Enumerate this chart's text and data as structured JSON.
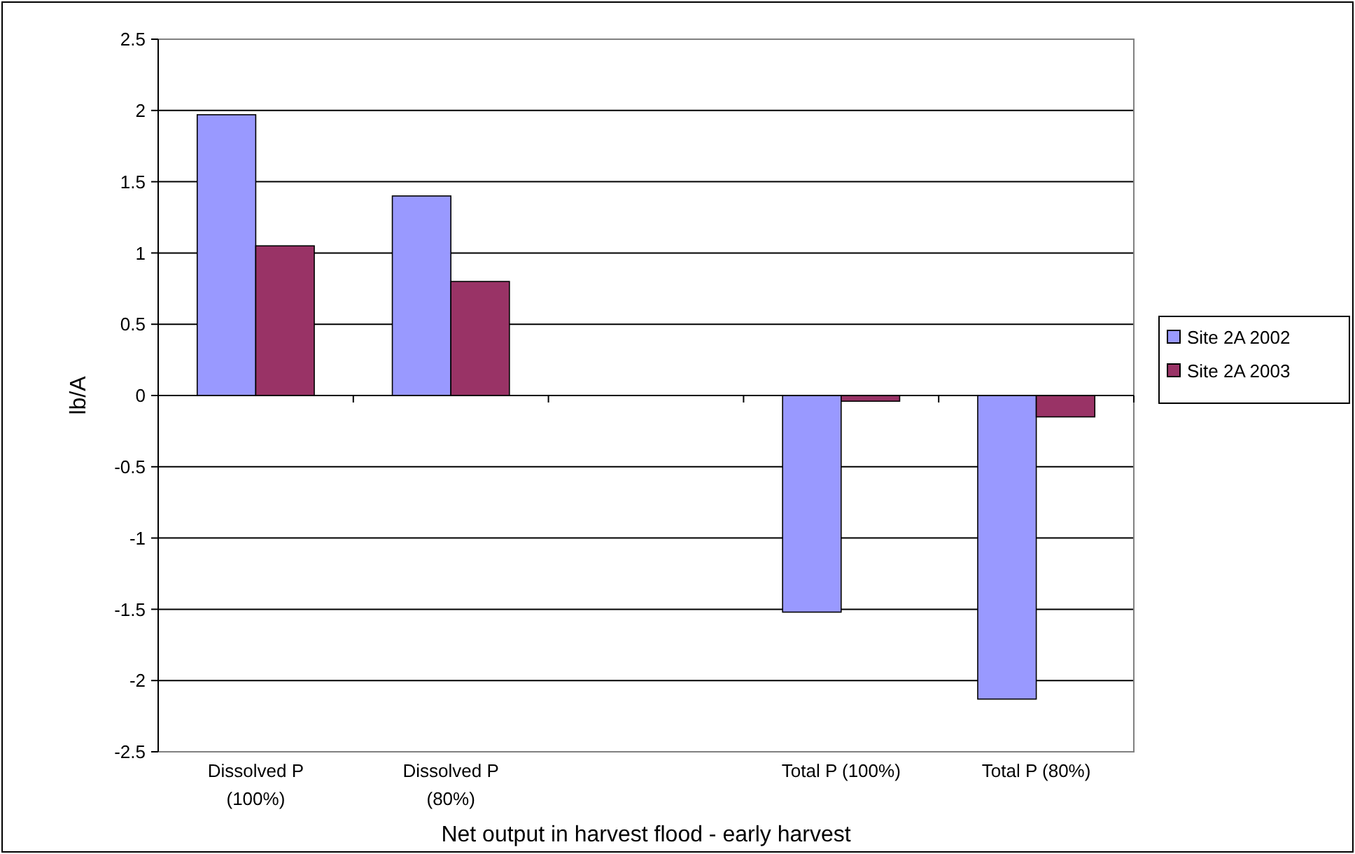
{
  "chart_data": {
    "type": "bar",
    "xlabel": "Net output in harvest flood - early harvest",
    "ylabel": "lb/A",
    "categories": [
      "Dissolved P (100%)",
      "Dissolved P (80%)",
      null,
      "Total P (100%)",
      "Total P (80%)"
    ],
    "series": [
      {
        "name": "Site 2A 2002",
        "color": "#9999ff",
        "values": [
          1.97,
          1.4,
          null,
          -1.52,
          -2.13
        ]
      },
      {
        "name": "Site 2A 2003",
        "color": "#993366",
        "values": [
          1.05,
          0.8,
          null,
          -0.04,
          -0.15
        ]
      }
    ],
    "ylim": [
      -2.5,
      2.5
    ],
    "yticks": [
      -2.5,
      -2,
      -1.5,
      -1,
      -0.5,
      0,
      0.5,
      1,
      1.5,
      2,
      2.5
    ],
    "grid": "y",
    "legend": "right"
  }
}
